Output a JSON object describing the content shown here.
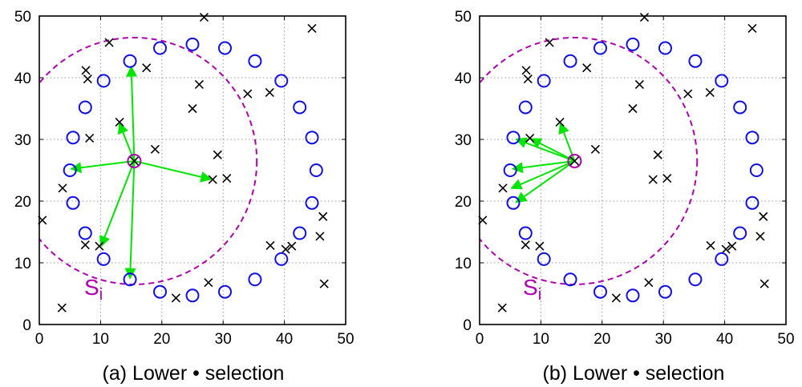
{
  "chart_data": [
    {
      "type": "scatter",
      "title": "",
      "caption": "(a) Lower •  selection",
      "xlabel": "",
      "ylabel": "",
      "xlim": [
        0,
        50
      ],
      "ylim": [
        0,
        50
      ],
      "xticks": [
        0,
        10,
        20,
        30,
        40,
        50
      ],
      "yticks": [
        0,
        10,
        20,
        30,
        40,
        50
      ],
      "grid": true,
      "legend": "none",
      "circle_nodes": [
        [
          5,
          25
        ],
        [
          5.5,
          19.7
        ],
        [
          5.5,
          30.3
        ],
        [
          7.5,
          14.8
        ],
        [
          7.5,
          35.2
        ],
        [
          10.5,
          10.6
        ],
        [
          10.5,
          39.5
        ],
        [
          14.8,
          42.7
        ],
        [
          14.8,
          7.3
        ],
        [
          19.7,
          44.8
        ],
        [
          19.7,
          5.3
        ],
        [
          25,
          4.7
        ],
        [
          25,
          45.4
        ],
        [
          30.3,
          44.8
        ],
        [
          30.3,
          5.3
        ],
        [
          35.2,
          42.7
        ],
        [
          35.2,
          7.3
        ],
        [
          39.5,
          39.5
        ],
        [
          39.5,
          10.6
        ],
        [
          42.5,
          35.2
        ],
        [
          42.5,
          14.8
        ],
        [
          44.5,
          30.3
        ],
        [
          44.5,
          19.7
        ],
        [
          45.2,
          25
        ]
      ],
      "cross_nodes": [
        [
          0.5,
          16.9
        ],
        [
          3.7,
          2.7
        ],
        [
          3.8,
          22.1
        ],
        [
          7.5,
          12.9
        ],
        [
          7.6,
          41.2
        ],
        [
          7.9,
          39.8
        ],
        [
          8.2,
          30.2
        ],
        [
          9.8,
          12.7
        ],
        [
          11.4,
          45.7
        ],
        [
          13.1,
          32.8
        ],
        [
          17.5,
          41.6
        ],
        [
          18.9,
          28.4
        ],
        [
          22.3,
          4.3
        ],
        [
          25,
          35
        ],
        [
          26.1,
          38.9
        ],
        [
          26.9,
          49.8
        ],
        [
          27.6,
          6.8
        ],
        [
          28.3,
          23.5
        ],
        [
          29.1,
          27.5
        ],
        [
          30.6,
          23.7
        ],
        [
          34,
          37.4
        ],
        [
          37.6,
          37.6
        ],
        [
          37.7,
          12.8
        ],
        [
          40.2,
          12.2
        ],
        [
          41.2,
          12.7
        ],
        [
          44.5,
          48
        ],
        [
          45.8,
          14.3
        ],
        [
          46.3,
          17.5
        ],
        [
          46.5,
          6.6
        ]
      ],
      "node_i": [
        15.5,
        26.5
      ],
      "range_circle": {
        "center": [
          15.5,
          26.5
        ],
        "radius": 20
      },
      "range_label": "S",
      "range_label_sub": "i",
      "arrows_to": [
        [
          15,
          42
        ],
        [
          13,
          32.8
        ],
        [
          5,
          25.2
        ],
        [
          28.2,
          23.5
        ],
        [
          10,
          12.5
        ],
        [
          14.8,
          7.3
        ]
      ]
    },
    {
      "type": "scatter",
      "title": "",
      "caption": "(b) Lower •  selection",
      "xlabel": "",
      "ylabel": "",
      "xlim": [
        0,
        50
      ],
      "ylim": [
        0,
        50
      ],
      "xticks": [
        0,
        10,
        20,
        30,
        40,
        50
      ],
      "yticks": [
        0,
        10,
        20,
        30,
        40,
        50
      ],
      "grid": true,
      "legend": "none",
      "circle_nodes": [
        [
          5,
          25
        ],
        [
          5.5,
          19.7
        ],
        [
          5.5,
          30.3
        ],
        [
          7.5,
          14.8
        ],
        [
          7.5,
          35.2
        ],
        [
          10.5,
          10.6
        ],
        [
          10.5,
          39.5
        ],
        [
          14.8,
          42.7
        ],
        [
          14.8,
          7.3
        ],
        [
          19.7,
          44.8
        ],
        [
          19.7,
          5.3
        ],
        [
          25,
          4.7
        ],
        [
          25,
          45.4
        ],
        [
          30.3,
          44.8
        ],
        [
          30.3,
          5.3
        ],
        [
          35.2,
          42.7
        ],
        [
          35.2,
          7.3
        ],
        [
          39.5,
          39.5
        ],
        [
          39.5,
          10.6
        ],
        [
          42.5,
          35.2
        ],
        [
          42.5,
          14.8
        ],
        [
          44.5,
          30.3
        ],
        [
          44.5,
          19.7
        ],
        [
          45.2,
          25
        ]
      ],
      "cross_nodes": [
        [
          0.5,
          16.9
        ],
        [
          3.7,
          2.7
        ],
        [
          3.8,
          22.1
        ],
        [
          7.5,
          12.9
        ],
        [
          7.6,
          41.2
        ],
        [
          7.9,
          39.8
        ],
        [
          8.2,
          30.2
        ],
        [
          9.8,
          12.7
        ],
        [
          11.4,
          45.7
        ],
        [
          13.1,
          32.8
        ],
        [
          17.5,
          41.6
        ],
        [
          18.9,
          28.4
        ],
        [
          22.3,
          4.3
        ],
        [
          25,
          35
        ],
        [
          26.1,
          38.9
        ],
        [
          26.9,
          49.8
        ],
        [
          27.6,
          6.8
        ],
        [
          28.3,
          23.5
        ],
        [
          29.1,
          27.5
        ],
        [
          30.6,
          23.7
        ],
        [
          34,
          37.4
        ],
        [
          37.6,
          37.6
        ],
        [
          37.7,
          12.8
        ],
        [
          40.2,
          12.2
        ],
        [
          41.2,
          12.7
        ],
        [
          44.5,
          48
        ],
        [
          45.8,
          14.3
        ],
        [
          46.3,
          17.5
        ],
        [
          46.5,
          6.6
        ]
      ],
      "node_i": [
        15.5,
        26.5
      ],
      "range_circle": {
        "center": [
          15.5,
          26.5
        ],
        "radius": 20
      },
      "range_label": "S",
      "range_label_sub": "i",
      "arrows_to": [
        [
          13.1,
          32.8
        ],
        [
          8.2,
          30.2
        ],
        [
          5.8,
          30.1
        ],
        [
          5.2,
          25.2
        ],
        [
          5,
          22
        ],
        [
          5.8,
          19.7
        ]
      ]
    }
  ],
  "colors": {
    "circle": "#1010e6",
    "cross": "#000000",
    "arrow": "#00e600",
    "range": "#b000b0",
    "grid": "#9a9a9a",
    "axis": "#000000"
  },
  "icons": {
    "circle_marker": "circle-icon",
    "cross_marker": "cross-icon"
  }
}
